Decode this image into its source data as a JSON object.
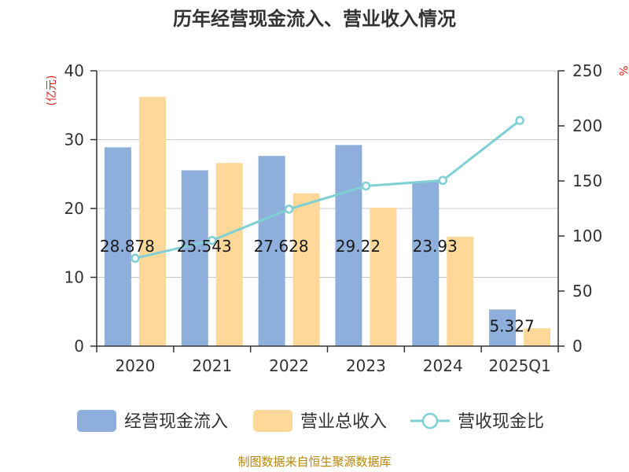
{
  "chart_data": {
    "type": "bar",
    "title": "历年经营现金流入、营业收入情况",
    "categories": [
      "2020",
      "2021",
      "2022",
      "2023",
      "2024",
      "2025Q1"
    ],
    "y_left": {
      "unit_label": "(亿元)",
      "ylim": [
        0,
        40
      ],
      "ticks": [
        "0",
        "10",
        "20",
        "30",
        "40"
      ]
    },
    "y_right": {
      "unit_label": "%",
      "ylim": [
        0,
        250
      ],
      "ticks": [
        "0",
        "50",
        "100",
        "150",
        "200",
        "250"
      ]
    },
    "grid": true,
    "legend_position": "bottom",
    "series": [
      {
        "name": "经营现金流入",
        "type": "bar",
        "axis": "left",
        "color": "#8eaedb",
        "values": [
          28.878,
          25.543,
          27.628,
          29.22,
          23.93,
          5.327
        ],
        "data_labels": [
          "28.878",
          "25.543",
          "27.628",
          "29.22",
          "23.93",
          "5.327"
        ]
      },
      {
        "name": "营业总收入",
        "type": "bar",
        "axis": "left",
        "color": "#fdd898",
        "values": [
          36.2,
          26.6,
          22.2,
          20.1,
          15.9,
          2.6
        ]
      },
      {
        "name": "营收现金比",
        "type": "line",
        "axis": "right",
        "color": "#7fd0d4",
        "values": [
          79.8,
          96.0,
          124.4,
          145.4,
          150.5,
          204.9
        ]
      }
    ],
    "source": "制图数据来自恒生聚源数据库"
  }
}
